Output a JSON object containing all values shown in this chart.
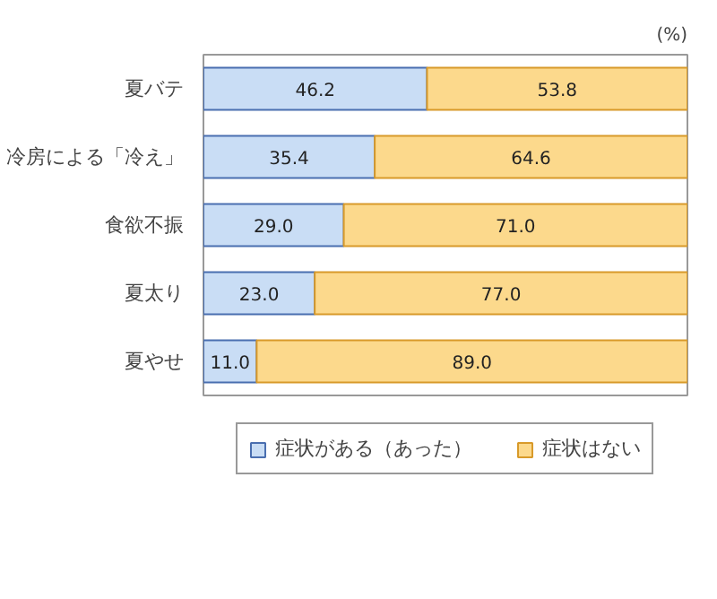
{
  "chart_data": {
    "type": "bar",
    "orientation": "horizontal",
    "stacked": true,
    "categories": [
      "夏バテ",
      "冷房による「冷え」",
      "食欲不振",
      "夏太り",
      "夏やせ"
    ],
    "series": [
      {
        "name": "症状がある（あった）",
        "color": "#c9ddf5",
        "values": [
          46.2,
          35.4,
          29.0,
          23.0,
          11.0
        ],
        "value_labels": [
          "46.2",
          "35.4",
          "29.0",
          "23.0",
          "11.0"
        ]
      },
      {
        "name": "症状はない",
        "color": "#fcd98c",
        "values": [
          53.8,
          64.6,
          71.0,
          77.0,
          89.0
        ],
        "value_labels": [
          "53.8",
          "64.6",
          "71.0",
          "77.0",
          "89.0"
        ]
      }
    ],
    "xlim": [
      0,
      100
    ],
    "legend": "bottom",
    "tick_labels": "y",
    "annotations": [
      "(%)"
    ]
  }
}
